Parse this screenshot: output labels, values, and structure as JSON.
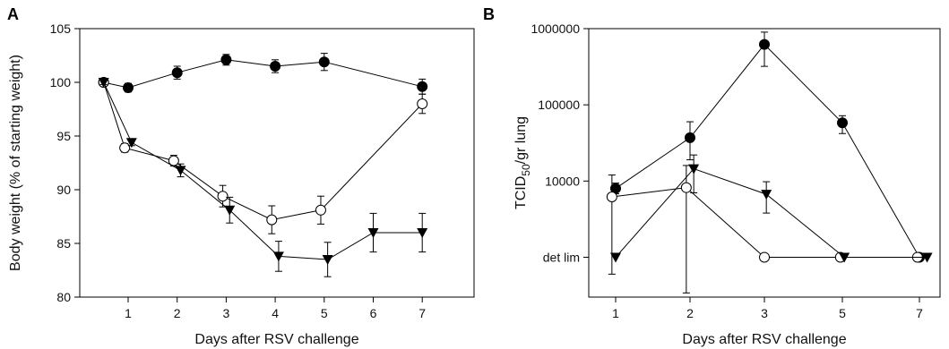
{
  "chart_data": [
    {
      "panel": "A",
      "type": "line",
      "xlabel": "Days after RSV challenge",
      "ylabel": "Body weight (% of starting weight)",
      "ylim": [
        80,
        105
      ],
      "yticks": [
        80,
        85,
        90,
        95,
        100,
        105
      ],
      "xticks": [
        1,
        2,
        3,
        4,
        5,
        6,
        7
      ],
      "series": [
        {
          "marker": "filled-circle",
          "color": "#000000",
          "x": [
            0.5,
            1,
            2,
            3,
            4,
            5,
            7
          ],
          "y": [
            100,
            99.5,
            100.9,
            102.1,
            101.5,
            101.9,
            99.6
          ],
          "err": [
            0.2,
            0.4,
            0.6,
            0.5,
            0.6,
            0.8,
            0.7
          ]
        },
        {
          "marker": "open-circle",
          "color": "#000000",
          "x": [
            0.5,
            0.93,
            1.93,
            2.93,
            3.93,
            4.93,
            7
          ],
          "y": [
            100,
            93.9,
            92.7,
            89.4,
            87.2,
            88.1,
            98
          ],
          "err": [
            0.2,
            0.4,
            0.5,
            1.0,
            1.3,
            1.3,
            0.9
          ]
        },
        {
          "marker": "filled-triangle-down",
          "color": "#000000",
          "x": [
            0.5,
            1.07,
            2.07,
            3.07,
            4.07,
            5.07,
            6,
            7
          ],
          "y": [
            100,
            94.4,
            91.8,
            88.1,
            83.8,
            83.5,
            86,
            86
          ],
          "err": [
            0.2,
            0.3,
            0.6,
            1.2,
            1.4,
            1.6,
            1.8,
            1.8
          ]
        }
      ]
    },
    {
      "panel": "B",
      "type": "line",
      "yscale": "log",
      "xlabel": "Days after RSV challenge",
      "ylabel_main": "TCID",
      "ylabel_sub": "50",
      "ylabel_tail": "/gr lung",
      "ylim": [
        300,
        1000000
      ],
      "yticks": [
        1000000,
        100000,
        10000
      ],
      "ytick_labels": [
        "1000000",
        "100000",
        "10000"
      ],
      "det_lim": {
        "label": "det lim",
        "value": 1000
      },
      "xticks": [
        "1",
        "2",
        "3",
        "5",
        "7"
      ],
      "series": [
        {
          "marker": "filled-circle",
          "color": "#000000",
          "x": [
            1,
            2,
            3,
            5,
            7
          ],
          "y": [
            8000,
            37000,
            620000,
            58000,
            1000
          ],
          "err_lo": [
            6800,
            19000,
            320000,
            42000,
            1000
          ],
          "err_hi": [
            9400,
            60000,
            900000,
            72000,
            1000
          ]
        },
        {
          "marker": "open-circle",
          "color": "#000000",
          "x": [
            0.95,
            1.95,
            3,
            4.95,
            6.95
          ],
          "y": [
            6200,
            8200,
            1000,
            1000,
            1000
          ],
          "err_lo": [
            600,
            340,
            1000,
            1000,
            1000
          ],
          "err_hi": [
            12000,
            16000,
            1000,
            1000,
            1000
          ]
        },
        {
          "marker": "filled-triangle-down",
          "color": "#000000",
          "x": [
            1,
            2.05,
            3.05,
            5.05,
            7.1
          ],
          "y": [
            1000,
            14500,
            6700,
            1000,
            1000
          ],
          "err_lo": [
            1000,
            7000,
            3800,
            1000,
            1000
          ],
          "err_hi": [
            1000,
            22000,
            9800,
            1000,
            1000
          ]
        }
      ]
    }
  ]
}
